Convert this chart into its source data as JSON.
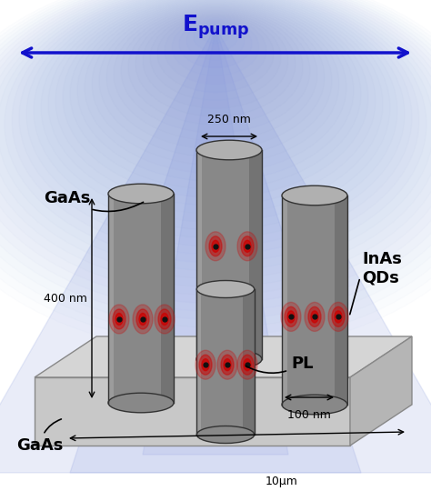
{
  "bg_color": "#ffffff",
  "blue_glow_color": "#8899dd",
  "arrow_color": "#1111cc",
  "pillar_color_face": "#888888",
  "pillar_color_edge": "#333333",
  "pillar_top_color": "#aaaaaa",
  "pillar_shadow": "#666666",
  "substrate_top": "#d8d8d8",
  "substrate_front": "#cccccc",
  "substrate_right": "#b8b8b8",
  "substrate_edge": "#888888",
  "qd_dot_color": "#111111",
  "qd_glow_color": "#cc0000",
  "label_gaas_pillar": "GaAs",
  "label_gaas_sub": "GaAs",
  "label_inas": "InAs\nQDs",
  "label_pl": "PL",
  "label_250": "250 nm",
  "label_400": "400 nm",
  "label_100": "100 nm",
  "label_10": "10μm"
}
